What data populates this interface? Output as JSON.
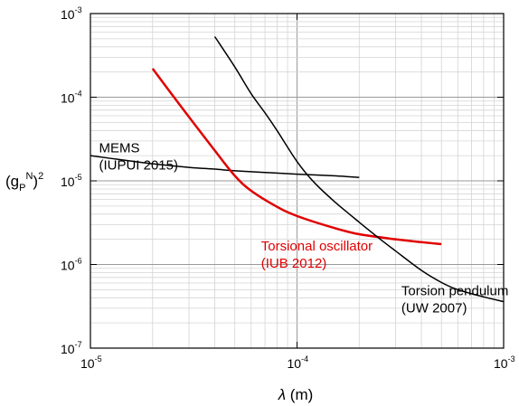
{
  "chart_data": {
    "type": "line",
    "xscale": "log",
    "yscale": "log",
    "xlim": [
      1e-05,
      0.001
    ],
    "ylim": [
      1e-07,
      0.001
    ],
    "grid": true,
    "xlabel": {
      "symbol": "λ",
      "unit": " (m)"
    },
    "ylabel": {
      "base": "(g",
      "sub": "P",
      "sup": "N",
      "close": ")",
      "power": "2"
    },
    "x_ticks": [
      {
        "base": "10",
        "exp": "-5"
      },
      {
        "base": "10",
        "exp": "-4"
      },
      {
        "base": "10",
        "exp": "-3"
      }
    ],
    "y_ticks": [
      {
        "base": "10",
        "exp": "-7"
      },
      {
        "base": "10",
        "exp": "-6"
      },
      {
        "base": "10",
        "exp": "-5"
      },
      {
        "base": "10",
        "exp": "-4"
      },
      {
        "base": "10",
        "exp": "-3"
      }
    ],
    "series": [
      {
        "key": "mems",
        "color": "#000000",
        "label_lines": [
          "MEMS",
          "(IUPUI 2015)"
        ],
        "label_anchor": [
          1.1e-05,
          2.2e-05
        ],
        "x": [
          1e-05,
          1.5e-05,
          2e-05,
          3e-05,
          4e-05,
          5e-05,
          7e-05,
          0.0001,
          0.00015,
          0.0002
        ],
        "y": [
          2e-05,
          1.75e-05,
          1.6e-05,
          1.45e-05,
          1.38e-05,
          1.32e-05,
          1.26e-05,
          1.2e-05,
          1.15e-05,
          1.1e-05
        ]
      },
      {
        "key": "iub",
        "color": "#e00000",
        "label_lines": [
          "Torsional oscillator",
          "(IUB 2012)"
        ],
        "label_anchor": [
          6.7e-05,
          1.48e-06
        ],
        "x": [
          2e-05,
          2.5e-05,
          3e-05,
          4e-05,
          5e-05,
          6e-05,
          8e-05,
          0.0001,
          0.00015,
          0.0002,
          0.0003,
          0.0004,
          0.0005
        ],
        "y": [
          0.00022,
          0.000105,
          5.8e-05,
          2.3e-05,
          1.15e-05,
          7.6e-06,
          4.9e-06,
          3.8e-06,
          2.75e-06,
          2.3e-06,
          2e-06,
          1.85e-06,
          1.75e-06
        ]
      },
      {
        "key": "uw",
        "color": "#000000",
        "label_lines": [
          "Torsion pendulum",
          "(UW 2007)"
        ],
        "label_anchor": [
          0.00032,
          4.3e-07
        ],
        "x": [
          4e-05,
          5e-05,
          6e-05,
          7e-05,
          8e-05,
          0.0001,
          0.00012,
          0.00015,
          0.0002,
          0.00025,
          0.0003,
          0.0004,
          0.0005,
          0.0006,
          0.0008,
          0.001
        ],
        "y": [
          0.00053,
          0.00023,
          0.00011,
          6.5e-05,
          4e-05,
          1.7e-05,
          9.8e-06,
          5.8e-06,
          3.2e-06,
          2.05e-06,
          1.45e-06,
          8.5e-07,
          6.1e-07,
          5e-07,
          4.1e-07,
          3.6e-07
        ]
      }
    ]
  }
}
